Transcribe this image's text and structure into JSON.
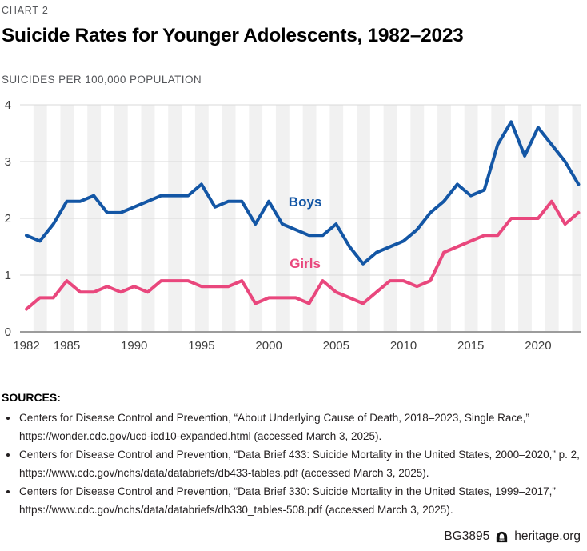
{
  "header": {
    "kicker": "CHART 2",
    "title": "Suicide Rates for Younger Adolescents, 1982–2023",
    "subtitle": "SUICIDES PER 100,000 POPULATION"
  },
  "chart_data": {
    "type": "line",
    "title": "Suicide Rates for Younger Adolescents, 1982–2023",
    "ylabel": "SUICIDES PER 100,000 POPULATION",
    "xlabel": "",
    "ylim": [
      0,
      4
    ],
    "y_ticks": [
      0,
      1,
      2,
      3,
      4
    ],
    "x_ticks": [
      1982,
      1985,
      1990,
      1995,
      2000,
      2005,
      2010,
      2015,
      2020
    ],
    "grid": "horizontal",
    "background_stripes": true,
    "legend_position": "inline-labels",
    "x": [
      1982,
      1983,
      1984,
      1985,
      1986,
      1987,
      1988,
      1989,
      1990,
      1991,
      1992,
      1993,
      1994,
      1995,
      1996,
      1997,
      1998,
      1999,
      2000,
      2001,
      2002,
      2003,
      2004,
      2005,
      2006,
      2007,
      2008,
      2009,
      2010,
      2011,
      2012,
      2013,
      2014,
      2015,
      2016,
      2017,
      2018,
      2019,
      2020,
      2021,
      2022,
      2023
    ],
    "series": [
      {
        "name": "Boys",
        "color": "#1356a5",
        "values": [
          1.7,
          1.6,
          1.9,
          2.3,
          2.3,
          2.4,
          2.1,
          2.1,
          2.2,
          2.3,
          2.4,
          2.4,
          2.4,
          2.6,
          2.2,
          2.3,
          2.3,
          1.9,
          2.3,
          1.9,
          1.8,
          1.7,
          1.7,
          1.9,
          1.5,
          1.2,
          1.4,
          1.5,
          1.6,
          1.8,
          2.1,
          2.3,
          2.6,
          2.4,
          2.5,
          3.3,
          3.7,
          3.1,
          3.6,
          3.3,
          3.0,
          2.6
        ]
      },
      {
        "name": "Girls",
        "color": "#e9477d",
        "values": [
          0.4,
          0.6,
          0.6,
          0.9,
          0.7,
          0.7,
          0.8,
          0.7,
          0.8,
          0.7,
          0.9,
          0.9,
          0.9,
          0.8,
          0.8,
          0.8,
          0.9,
          0.5,
          0.6,
          0.6,
          0.6,
          0.5,
          0.9,
          0.7,
          0.6,
          0.5,
          0.7,
          0.9,
          0.9,
          0.8,
          0.9,
          1.4,
          1.5,
          1.6,
          1.7,
          1.7,
          2.0,
          2.0,
          2.0,
          2.3,
          1.9,
          2.1
        ]
      }
    ],
    "annotations": [
      {
        "text": "Boys",
        "year": 2002.7,
        "value": 2.21,
        "color": "#1356a5"
      },
      {
        "text": "Girls",
        "year": 2002.7,
        "value": 1.13,
        "color": "#e9477d"
      }
    ],
    "colors": {
      "stripe": "#f1f1f1",
      "gridline": "#d9d9d9",
      "axis": "#9c9c9c",
      "tick_label": "#3d3d3d"
    }
  },
  "footer": {
    "sources_label": "SOURCES:",
    "sources": [
      "Centers for Disease Control and Prevention, “About Underlying Cause of Death, 2018–2023, Single Race,” https://wonder.cdc.gov/ucd-icd10-expanded.html (accessed March 3, 2025).",
      "Centers for Disease Control and Prevention, “Data Brief 433: Suicide Mortality in the United States, 2000–2020,” p. 2, https://www.cdc.gov/nchs/data/databriefs/db433-tables.pdf (accessed March 3, 2025).",
      "Centers for Disease Control and Prevention, “Data Brief 330: Suicide Mortality in the United States, 1999–2017,” https://www.cdc.gov/nchs/data/databriefs/db330_tables-508.pdf (accessed March 3, 2025)."
    ],
    "report_id": "BG3895",
    "site": "heritage.org"
  }
}
